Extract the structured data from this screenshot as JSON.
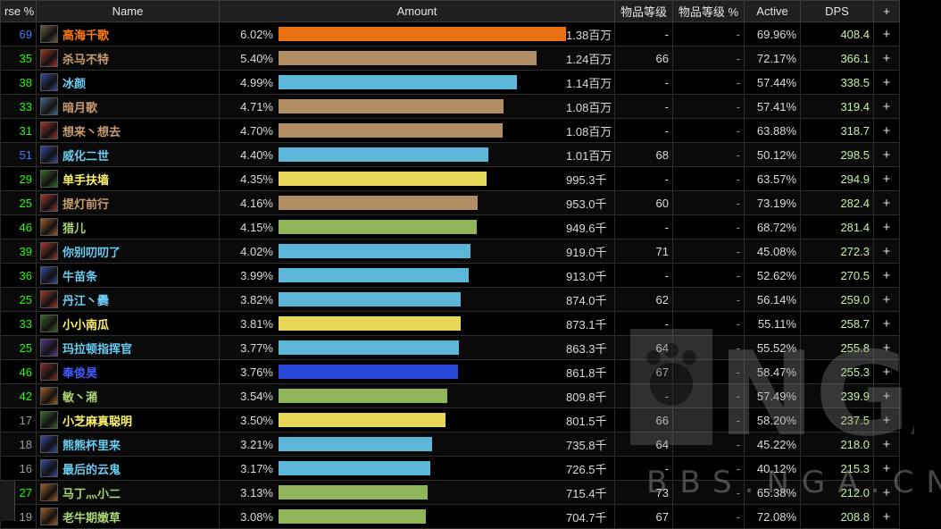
{
  "header": {
    "parse": "rse %",
    "name": "Name",
    "amount": "Amount",
    "ilvl": "物品等级",
    "ilvl_pct": "物品等级 %",
    "active": "Active",
    "dps": "DPS",
    "plus": "+"
  },
  "colors": {
    "parse_blue": "#4a7cff",
    "parse_green": "#1eff00",
    "parse_gray": "#9d9d9d",
    "class_warrior": "#c79c6e",
    "class_mage": "#69ccf0",
    "class_monk": "#00ff96",
    "class_rogue": "#fff569",
    "class_hunter": "#abd473",
    "class_shaman": "#0070de",
    "class_dh": "#a330c9",
    "bar_orange": "#e87012"
  },
  "rows": [
    {
      "parse": "69",
      "parse_color": "#4a7cff",
      "name": "高海千歌",
      "name_color": "#ff7d0a",
      "icon": "warrior-icon",
      "icon_color": "#6b5a3a",
      "pct": "6.02%",
      "fill": 1.0,
      "bar_color": "#e87012",
      "total": "1.38百万",
      "ilvl": "-",
      "ilvl_pct": "-",
      "active": "69.96%",
      "dps": "408.4",
      "plus": "+"
    },
    {
      "parse": "35",
      "parse_color": "#1eff00",
      "name": "杀马不特",
      "name_color": "#c79c6e",
      "icon": "fury-icon",
      "icon_color": "#a2362a",
      "pct": "5.40%",
      "fill": 0.897,
      "bar_color": "#b08d62",
      "total": "1.24百万",
      "ilvl": "66",
      "ilvl_pct": "-",
      "active": "72.17%",
      "dps": "366.1",
      "plus": "+"
    },
    {
      "parse": "38",
      "parse_color": "#1eff00",
      "name": "冰颜",
      "name_color": "#69ccf0",
      "icon": "frost-icon",
      "icon_color": "#3a4aa0",
      "pct": "4.99%",
      "fill": 0.829,
      "bar_color": "#5bb6d8",
      "total": "1.14百万",
      "ilvl": "-",
      "ilvl_pct": "-",
      "active": "57.44%",
      "dps": "338.5",
      "plus": "+"
    },
    {
      "parse": "33",
      "parse_color": "#1eff00",
      "name": "暗月歌",
      "name_color": "#c79c6e",
      "icon": "sword-icon",
      "icon_color": "#4a6a8a",
      "pct": "4.71%",
      "fill": 0.782,
      "bar_color": "#b08d62",
      "total": "1.08百万",
      "ilvl": "-",
      "ilvl_pct": "-",
      "active": "57.41%",
      "dps": "319.4",
      "plus": "+"
    },
    {
      "parse": "31",
      "parse_color": "#1eff00",
      "name": "想来丶想去",
      "name_color": "#c79c6e",
      "icon": "fury-icon",
      "icon_color": "#a2362a",
      "pct": "4.70%",
      "fill": 0.781,
      "bar_color": "#b08d62",
      "total": "1.08百万",
      "ilvl": "-",
      "ilvl_pct": "-",
      "active": "63.88%",
      "dps": "318.7",
      "plus": "+"
    },
    {
      "parse": "51",
      "parse_color": "#4a7cff",
      "name": "威化二世",
      "name_color": "#69ccf0",
      "icon": "frost-icon",
      "icon_color": "#3a4aa0",
      "pct": "4.40%",
      "fill": 0.731,
      "bar_color": "#5bb6d8",
      "total": "1.01百万",
      "ilvl": "68",
      "ilvl_pct": "-",
      "active": "50.12%",
      "dps": "298.5",
      "plus": "+"
    },
    {
      "parse": "29",
      "parse_color": "#1eff00",
      "name": "单手扶墙",
      "name_color": "#fff569",
      "icon": "dagger-icon",
      "icon_color": "#3a6a2a",
      "pct": "4.35%",
      "fill": 0.723,
      "bar_color": "#e6d65a",
      "total": "995.3千",
      "ilvl": "-",
      "ilvl_pct": "-",
      "active": "63.57%",
      "dps": "294.9",
      "plus": "+"
    },
    {
      "parse": "25",
      "parse_color": "#1eff00",
      "name": "提灯前行",
      "name_color": "#c79c6e",
      "icon": "fury-icon",
      "icon_color": "#a2362a",
      "pct": "4.16%",
      "fill": 0.691,
      "bar_color": "#b08d62",
      "total": "953.0千",
      "ilvl": "60",
      "ilvl_pct": "-",
      "active": "73.19%",
      "dps": "282.4",
      "plus": "+"
    },
    {
      "parse": "46",
      "parse_color": "#1eff00",
      "name": "猎儿",
      "name_color": "#abd473",
      "icon": "beast-icon",
      "icon_color": "#a0602a",
      "pct": "4.15%",
      "fill": 0.69,
      "bar_color": "#8fb45a",
      "total": "949.6千",
      "ilvl": "-",
      "ilvl_pct": "-",
      "active": "68.72%",
      "dps": "281.4",
      "plus": "+"
    },
    {
      "parse": "39",
      "parse_color": "#1eff00",
      "name": "你别叨叨了",
      "name_color": "#69ccf0",
      "icon": "fire-icon",
      "icon_color": "#a03a2a",
      "pct": "4.02%",
      "fill": 0.668,
      "bar_color": "#5bb6d8",
      "total": "919.0千",
      "ilvl": "71",
      "ilvl_pct": "-",
      "active": "45.08%",
      "dps": "272.3",
      "plus": "+"
    },
    {
      "parse": "36",
      "parse_color": "#1eff00",
      "name": "牛苗条",
      "name_color": "#69ccf0",
      "icon": "frost-icon",
      "icon_color": "#3a4aa0",
      "pct": "3.99%",
      "fill": 0.663,
      "bar_color": "#5bb6d8",
      "total": "913.0千",
      "ilvl": "-",
      "ilvl_pct": "-",
      "active": "52.62%",
      "dps": "270.5",
      "plus": "+"
    },
    {
      "parse": "25",
      "parse_color": "#1eff00",
      "name": "丹江丶爨",
      "name_color": "#69ccf0",
      "icon": "fire-icon",
      "icon_color": "#a03a2a",
      "pct": "3.82%",
      "fill": 0.635,
      "bar_color": "#5bb6d8",
      "total": "874.0千",
      "ilvl": "62",
      "ilvl_pct": "-",
      "active": "56.14%",
      "dps": "259.0",
      "plus": "+"
    },
    {
      "parse": "33",
      "parse_color": "#1eff00",
      "name": "小小南瓜",
      "name_color": "#fff569",
      "icon": "dagger-icon",
      "icon_color": "#3a6a2a",
      "pct": "3.81%",
      "fill": 0.633,
      "bar_color": "#e6d65a",
      "total": "873.1千",
      "ilvl": "-",
      "ilvl_pct": "-",
      "active": "55.11%",
      "dps": "258.7",
      "plus": "+"
    },
    {
      "parse": "25",
      "parse_color": "#1eff00",
      "name": "玛拉顿指挥官",
      "name_color": "#69ccf0",
      "icon": "arcane-icon",
      "icon_color": "#5a3a8a",
      "pct": "3.77%",
      "fill": 0.626,
      "bar_color": "#5bb6d8",
      "total": "863.3千",
      "ilvl": "64",
      "ilvl_pct": "-",
      "active": "55.52%",
      "dps": "255.8",
      "plus": "+"
    },
    {
      "parse": "46",
      "parse_color": "#1eff00",
      "name": "奉俊昊",
      "name_color": "#3f5cff",
      "icon": "shaman-icon",
      "icon_color": "#8a2a2a",
      "pct": "3.76%",
      "fill": 0.624,
      "bar_color": "#2846d8",
      "total": "861.8千",
      "ilvl": "67",
      "ilvl_pct": "-",
      "active": "58.47%",
      "dps": "255.3",
      "plus": "+"
    },
    {
      "parse": "42",
      "parse_color": "#1eff00",
      "name": "敏丶潲",
      "name_color": "#abd473",
      "icon": "beast-icon",
      "icon_color": "#a0602a",
      "pct": "3.54%",
      "fill": 0.588,
      "bar_color": "#8fb45a",
      "total": "809.8千",
      "ilvl": "-",
      "ilvl_pct": "-",
      "active": "57.49%",
      "dps": "239.9",
      "plus": "+"
    },
    {
      "parse": "17",
      "parse_color": "#9d9d9d",
      "name": "小芝麻真聪明",
      "name_color": "#fff569",
      "icon": "dagger-icon",
      "icon_color": "#3a6a2a",
      "pct": "3.50%",
      "fill": 0.581,
      "bar_color": "#e6d65a",
      "total": "801.5千",
      "ilvl": "66",
      "ilvl_pct": "-",
      "active": "58.20%",
      "dps": "237.5",
      "plus": "+"
    },
    {
      "parse": "18",
      "parse_color": "#9d9d9d",
      "name": "熊熊杯里来",
      "name_color": "#69ccf0",
      "icon": "frost-icon",
      "icon_color": "#3a4aa0",
      "pct": "3.21%",
      "fill": 0.533,
      "bar_color": "#5bb6d8",
      "total": "735.8千",
      "ilvl": "64",
      "ilvl_pct": "-",
      "active": "45.22%",
      "dps": "218.0",
      "plus": "+"
    },
    {
      "parse": "16",
      "parse_color": "#9d9d9d",
      "name": "最后的云鬼",
      "name_color": "#69ccf0",
      "icon": "frost-icon",
      "icon_color": "#3a4aa0",
      "pct": "3.17%",
      "fill": 0.527,
      "bar_color": "#5bb6d8",
      "total": "726.5千",
      "ilvl": "-",
      "ilvl_pct": "-",
      "active": "40.12%",
      "dps": "215.3",
      "plus": "+"
    },
    {
      "parse": "27",
      "parse_color": "#1eff00",
      "name": "马丁灬小二",
      "name_color": "#abd473",
      "icon": "beast-icon",
      "icon_color": "#a0602a",
      "pct": "3.13%",
      "fill": 0.52,
      "bar_color": "#8fb45a",
      "total": "715.4千",
      "ilvl": "73",
      "ilvl_pct": "-",
      "active": "65.38%",
      "dps": "212.0",
      "plus": "+"
    },
    {
      "parse": "19",
      "parse_color": "#9d9d9d",
      "name": "老牛期嫩草",
      "name_color": "#abd473",
      "icon": "beast-icon",
      "icon_color": "#a0602a",
      "pct": "3.08%",
      "fill": 0.512,
      "bar_color": "#8fb45a",
      "total": "704.7千",
      "ilvl": "67",
      "ilvl_pct": "-",
      "active": "72.08%",
      "dps": "208.8",
      "plus": "+"
    }
  ],
  "watermark": {
    "logo": "NGA",
    "site": "BBS.NGA.CN"
  }
}
